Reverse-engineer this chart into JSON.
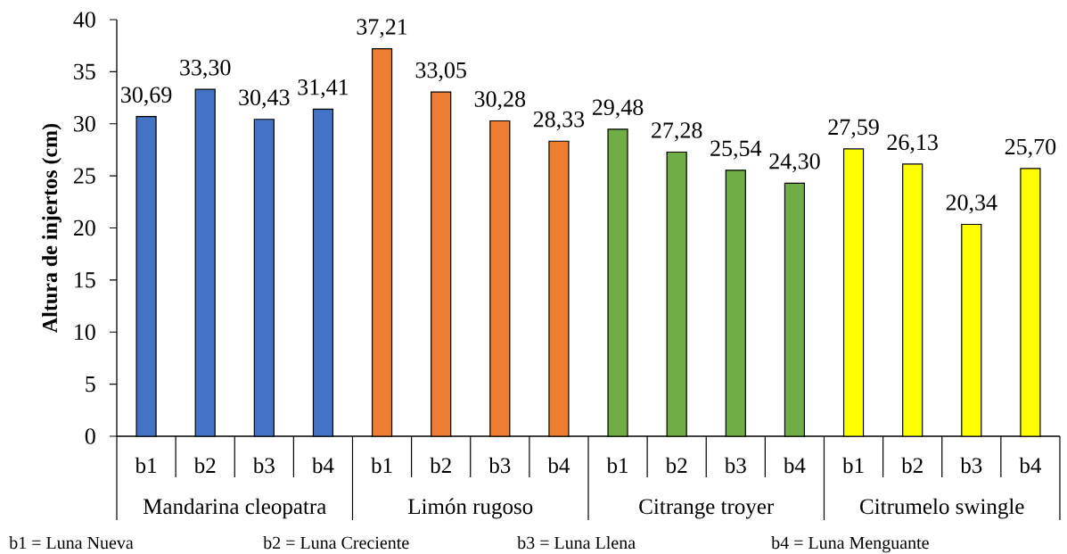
{
  "chart_data": {
    "type": "bar",
    "ylabel": "Altura de injertos (cm)",
    "categories": [
      "b1",
      "b2",
      "b3",
      "b4",
      "b1",
      "b2",
      "b3",
      "b4",
      "b1",
      "b2",
      "b3",
      "b4",
      "b1",
      "b2",
      "b3",
      "b4"
    ],
    "series": [
      {
        "name": "Mandarina cleopatra",
        "color": "#4472c4",
        "values": [
          30.69,
          33.3,
          30.43,
          31.41,
          null,
          null,
          null,
          null,
          null,
          null,
          null,
          null,
          null,
          null,
          null,
          null
        ],
        "value_labels": [
          "30,69",
          "33,30",
          "30,43",
          "31,41",
          null,
          null,
          null,
          null,
          null,
          null,
          null,
          null,
          null,
          null,
          null,
          null
        ]
      },
      {
        "name": "Limón rugoso",
        "color": "#ed7d31",
        "values": [
          null,
          null,
          null,
          null,
          37.21,
          33.05,
          30.28,
          28.33,
          null,
          null,
          null,
          null,
          null,
          null,
          null,
          null
        ],
        "value_labels": [
          null,
          null,
          null,
          null,
          "37,21",
          "33,05",
          "30,28",
          "28,33",
          null,
          null,
          null,
          null,
          null,
          null,
          null,
          null
        ]
      },
      {
        "name": "Citrange troyer",
        "color": "#70ad47",
        "values": [
          null,
          null,
          null,
          null,
          null,
          null,
          null,
          null,
          29.48,
          27.28,
          25.54,
          24.3,
          null,
          null,
          null,
          null
        ],
        "value_labels": [
          null,
          null,
          null,
          null,
          null,
          null,
          null,
          null,
          "29,48",
          "27,28",
          "25,54",
          "24,30",
          null,
          null,
          null,
          null
        ]
      },
      {
        "name": "Citrumelo swingle",
        "color": "#ffff00",
        "values": [
          null,
          null,
          null,
          null,
          null,
          null,
          null,
          null,
          null,
          null,
          null,
          null,
          27.59,
          26.13,
          20.34,
          25.7
        ],
        "value_labels": [
          null,
          null,
          null,
          null,
          null,
          null,
          null,
          null,
          null,
          null,
          null,
          null,
          "27,59",
          "26,13",
          "20,34",
          "25,70"
        ]
      }
    ],
    "ylim": [
      0,
      40
    ],
    "yticks": [
      0,
      5,
      10,
      15,
      20,
      25,
      30,
      35,
      40
    ],
    "legend": "bottom",
    "annotations": [
      "b1 = Luna Nueva",
      "b2 = Luna Creciente",
      "b3 = Luna Llena",
      "b4 = Luna Menguante"
    ]
  }
}
